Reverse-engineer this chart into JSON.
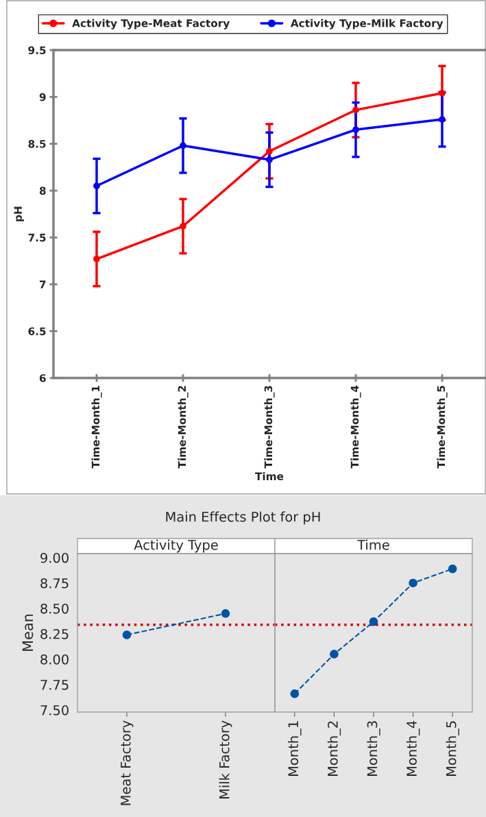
{
  "chart_data": [
    {
      "type": "line",
      "xlabel": "Time",
      "ylabel": "pH",
      "categories": [
        "Time-Month_1",
        "Time-Month_2",
        "Time-Month_3",
        "Time-Month_4",
        "Time-Month_5"
      ],
      "ylim": [
        6,
        9.5
      ],
      "yticks": [
        6,
        6.5,
        7,
        7.5,
        8,
        8.5,
        9,
        9.5
      ],
      "grid": false,
      "legend": "top",
      "marker": "circle",
      "line_style": "solid",
      "series": [
        {
          "name": "Activity Type-Meat Factory",
          "color": "#ff0000",
          "values": [
            7.27,
            7.62,
            8.42,
            8.86,
            9.04
          ],
          "errors": [
            0.29,
            0.29,
            0.29,
            0.29,
            0.29
          ]
        },
        {
          "name": "Activity Type-Milk Factory",
          "color": "#0000ff",
          "values": [
            8.05,
            8.48,
            8.33,
            8.65,
            8.76
          ],
          "errors": [
            0.29,
            0.29,
            0.29,
            0.29,
            0.29
          ]
        }
      ]
    },
    {
      "type": "line",
      "title": "Main Effects Plot for pH",
      "subtitle": "Activity Type",
      "ylabel": "Mean",
      "categories": [
        "Meat Factory",
        "Milk Factory"
      ],
      "ylim": [
        7.48,
        9.04
      ],
      "yticks": [
        {
          "value": 7.5,
          "label": "7.50"
        },
        {
          "value": 7.75,
          "label": "7.75"
        },
        {
          "value": 8,
          "label": "8.00"
        },
        {
          "value": 8.25,
          "label": "8.25"
        },
        {
          "value": 8.5,
          "label": "8.50"
        },
        {
          "value": 8.75,
          "label": "8.75"
        },
        {
          "value": 9,
          "label": "9.00"
        }
      ],
      "grid": false,
      "marker": "circle",
      "line_style": "dashed",
      "series": [
        {
          "color": "#0054a6",
          "values": [
            8.24,
            8.45
          ]
        }
      ],
      "ref_lines": [
        {
          "axis": "y",
          "value": 8.34,
          "color": "#d00000",
          "line_style": "dotted"
        }
      ]
    },
    {
      "type": "line",
      "subtitle": "Time",
      "categories": [
        "Month_1",
        "Month_2",
        "Month_3",
        "Month_4",
        "Month_5"
      ],
      "ylim": [
        7.48,
        9.04
      ],
      "tick_labels": "x",
      "grid": false,
      "marker": "circle",
      "line_style": "dashed",
      "series": [
        {
          "color": "#0054a6",
          "values": [
            7.66,
            8.05,
            8.37,
            8.75,
            8.89
          ]
        }
      ],
      "ref_lines": [
        {
          "axis": "y",
          "value": 8.34,
          "color": "#d00000",
          "line_style": "dotted"
        }
      ]
    }
  ]
}
